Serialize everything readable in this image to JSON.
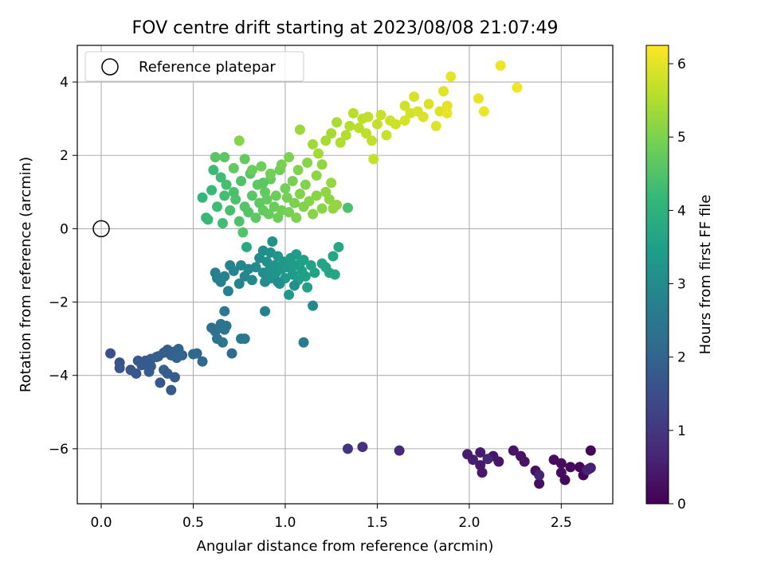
{
  "chart_data": {
    "type": "scatter",
    "title": "FOV centre drift starting at 2023/08/08 21:07:49",
    "xlabel": "Angular distance from reference (arcmin)",
    "ylabel": "Rotation from reference (arcmin)",
    "xlim": [
      -0.13,
      2.78
    ],
    "ylim": [
      -7.5,
      5.0
    ],
    "xticks": [
      0.0,
      0.5,
      1.0,
      1.5,
      2.0,
      2.5
    ],
    "xtick_labels": [
      "0.0",
      "0.5",
      "1.0",
      "1.5",
      "2.0",
      "2.5"
    ],
    "yticks": [
      -6,
      -4,
      -2,
      0,
      2,
      4
    ],
    "ytick_labels": [
      "−6",
      "−4",
      "−2",
      "0",
      "2",
      "4"
    ],
    "grid": true,
    "legend": {
      "placement": "top-left",
      "entries": [
        "Reference platepar"
      ]
    },
    "reference_point": {
      "name": "Reference platepar",
      "x": 0.0,
      "y": 0.0
    },
    "colorbar": {
      "label": "Hours from first FF file",
      "min": 0,
      "max": 6.25,
      "ticks": [
        0,
        1,
        2,
        3,
        4,
        5,
        6
      ],
      "tick_labels": [
        "0",
        "1",
        "2",
        "3",
        "4",
        "5",
        "6"
      ],
      "colormap": "viridis",
      "colormap_stops": [
        "#440154",
        "#482878",
        "#3e4989",
        "#31688e",
        "#26828e",
        "#1f9e89",
        "#35b779",
        "#6ece58",
        "#b5de2b",
        "#fde725"
      ]
    },
    "points_xyc": [
      [
        2.66,
        -6.05,
        0.05
      ],
      [
        2.62,
        -6.72,
        0.08
      ],
      [
        2.6,
        -6.5,
        0.1
      ],
      [
        2.55,
        -6.5,
        0.12
      ],
      [
        2.52,
        -6.85,
        0.15
      ],
      [
        2.5,
        -6.65,
        0.18
      ],
      [
        2.5,
        -6.4,
        0.2
      ],
      [
        2.46,
        -6.3,
        0.22
      ],
      [
        2.38,
        -6.95,
        0.25
      ],
      [
        2.36,
        -6.6,
        0.28
      ],
      [
        2.3,
        -6.35,
        0.3
      ],
      [
        2.28,
        -6.2,
        0.32
      ],
      [
        2.24,
        -6.05,
        0.35
      ],
      [
        2.16,
        -6.35,
        0.38
      ],
      [
        2.13,
        -6.2,
        0.4
      ],
      [
        2.07,
        -6.65,
        0.42
      ],
      [
        2.06,
        -6.45,
        0.45
      ],
      [
        2.06,
        -6.1,
        0.48
      ],
      [
        2.02,
        -6.3,
        0.5
      ],
      [
        1.99,
        -6.15,
        0.52
      ],
      [
        2.65,
        -6.55,
        0.55
      ],
      [
        2.66,
        -6.52,
        0.56
      ],
      [
        2.64,
        -6.58,
        0.58
      ],
      [
        2.38,
        -6.72,
        0.6
      ],
      [
        2.1,
        -6.28,
        0.62
      ],
      [
        1.62,
        -6.05,
        0.75
      ],
      [
        1.42,
        -5.95,
        0.85
      ],
      [
        1.34,
        -6.0,
        0.95
      ],
      [
        0.05,
        -3.4,
        1.55
      ],
      [
        0.1,
        -3.65,
        1.6
      ],
      [
        0.1,
        -3.8,
        1.65
      ],
      [
        0.16,
        -3.85,
        1.68
      ],
      [
        0.19,
        -3.95,
        1.72
      ],
      [
        0.24,
        -3.6,
        1.75
      ],
      [
        0.22,
        -3.72,
        1.78
      ],
      [
        0.26,
        -3.9,
        1.8
      ],
      [
        0.27,
        -3.55,
        1.82
      ],
      [
        0.31,
        -3.48,
        1.85
      ],
      [
        0.32,
        -4.2,
        1.72
      ],
      [
        0.34,
        -3.85,
        1.88
      ],
      [
        0.36,
        -3.3,
        1.9
      ],
      [
        0.38,
        -3.45,
        1.92
      ],
      [
        0.38,
        -4.4,
        1.75
      ],
      [
        0.4,
        -3.35,
        1.95
      ],
      [
        0.42,
        -3.28,
        1.97
      ],
      [
        0.4,
        -4.05,
        1.8
      ],
      [
        0.36,
        -3.95,
        1.82
      ],
      [
        0.41,
        -3.52,
        1.99
      ],
      [
        0.44,
        -3.45,
        2.0
      ],
      [
        0.5,
        -3.42,
        2.05
      ],
      [
        0.52,
        -3.4,
        2.08
      ],
      [
        0.55,
        -3.62,
        2.1
      ],
      [
        0.27,
        -3.75,
        1.77
      ],
      [
        0.3,
        -3.5,
        1.84
      ],
      [
        0.34,
        -3.38,
        1.87
      ],
      [
        0.2,
        -3.6,
        1.74
      ],
      [
        0.6,
        -2.7,
        2.3
      ],
      [
        0.62,
        -2.8,
        2.32
      ],
      [
        0.63,
        -3.0,
        2.35
      ],
      [
        0.65,
        -2.6,
        2.38
      ],
      [
        0.67,
        -2.75,
        2.4
      ],
      [
        0.66,
        -3.1,
        2.42
      ],
      [
        0.68,
        -2.65,
        2.44
      ],
      [
        0.71,
        -3.4,
        2.2
      ],
      [
        0.76,
        -3.0,
        2.5
      ],
      [
        0.78,
        -3.0,
        2.52
      ],
      [
        0.67,
        -2.25,
        2.55
      ],
      [
        0.62,
        -1.2,
        2.7
      ],
      [
        0.63,
        -1.35,
        2.72
      ],
      [
        0.65,
        -1.45,
        2.75
      ],
      [
        0.67,
        -1.3,
        2.78
      ],
      [
        0.69,
        -1.7,
        2.75
      ],
      [
        0.7,
        -1.0,
        2.8
      ],
      [
        0.72,
        -1.15,
        2.82
      ],
      [
        0.75,
        -1.5,
        2.85
      ],
      [
        0.76,
        -1.0,
        2.87
      ],
      [
        0.78,
        -1.3,
        2.9
      ],
      [
        0.8,
        -1.1,
        2.92
      ],
      [
        0.82,
        -1.4,
        2.95
      ],
      [
        0.84,
        -1.05,
        2.97
      ],
      [
        0.86,
        -0.8,
        3.0
      ],
      [
        0.88,
        -1.2,
        3.02
      ],
      [
        0.88,
        -0.6,
        3.05
      ],
      [
        0.89,
        -1.45,
        3.07
      ],
      [
        0.9,
        -0.9,
        3.1
      ],
      [
        0.91,
        -1.15,
        3.12
      ],
      [
        0.92,
        -0.65,
        3.14
      ],
      [
        0.92,
        -1.35,
        3.16
      ],
      [
        0.93,
        -0.35,
        3.18
      ],
      [
        0.94,
        -1.0,
        3.2
      ],
      [
        0.95,
        -1.2,
        3.22
      ],
      [
        0.96,
        -0.75,
        3.24
      ],
      [
        0.97,
        -1.5,
        3.26
      ],
      [
        0.98,
        -1.1,
        3.28
      ],
      [
        0.99,
        -0.9,
        3.3
      ],
      [
        1.0,
        -1.35,
        3.32
      ],
      [
        1.01,
        -1.05,
        3.34
      ],
      [
        1.02,
        -1.8,
        3.36
      ],
      [
        1.03,
        -0.8,
        3.38
      ],
      [
        1.04,
        -1.25,
        3.4
      ],
      [
        1.05,
        -1.0,
        3.42
      ],
      [
        1.06,
        -0.7,
        3.44
      ],
      [
        1.07,
        -1.4,
        3.46
      ],
      [
        1.08,
        -0.95,
        3.48
      ],
      [
        1.09,
        -1.15,
        3.5
      ],
      [
        1.1,
        -0.85,
        3.52
      ],
      [
        1.11,
        -1.3,
        3.54
      ],
      [
        1.12,
        -1.6,
        3.56
      ],
      [
        1.14,
        -1.0,
        3.58
      ],
      [
        1.16,
        -1.2,
        3.6
      ],
      [
        1.2,
        -0.95,
        3.62
      ],
      [
        1.22,
        -1.05,
        3.64
      ],
      [
        1.24,
        -1.2,
        3.66
      ],
      [
        1.26,
        -0.75,
        3.68
      ],
      [
        1.27,
        -1.25,
        3.7
      ],
      [
        1.29,
        -0.5,
        3.72
      ],
      [
        0.79,
        -0.5,
        3.75
      ],
      [
        1.15,
        -2.1,
        2.95
      ],
      [
        1.1,
        -3.1,
        2.6
      ],
      [
        0.89,
        -2.25,
        2.75
      ],
      [
        0.96,
        -1.45,
        3.08
      ],
      [
        1.05,
        -1.55,
        3.15
      ],
      [
        0.55,
        0.85,
        4.1
      ],
      [
        0.57,
        0.3,
        4.15
      ],
      [
        0.58,
        0.25,
        4.2
      ],
      [
        0.6,
        1.05,
        4.22
      ],
      [
        0.61,
        1.6,
        4.25
      ],
      [
        0.63,
        0.6,
        4.28
      ],
      [
        0.65,
        1.4,
        4.3
      ],
      [
        0.66,
        0.15,
        4.32
      ],
      [
        0.67,
        0.9,
        4.35
      ],
      [
        0.68,
        1.2,
        4.38
      ],
      [
        0.7,
        0.5,
        4.4
      ],
      [
        0.72,
        1.0,
        4.42
      ],
      [
        0.73,
        0.8,
        4.45
      ],
      [
        0.75,
        0.2,
        4.48
      ],
      [
        0.76,
        1.3,
        4.5
      ],
      [
        0.77,
        -0.1,
        4.52
      ],
      [
        0.78,
        0.6,
        4.55
      ],
      [
        0.8,
        0.45,
        4.57
      ],
      [
        0.81,
        1.5,
        4.6
      ],
      [
        0.82,
        0.9,
        4.62
      ],
      [
        0.84,
        0.3,
        4.64
      ],
      [
        0.85,
        1.2,
        4.66
      ],
      [
        0.86,
        0.7,
        4.68
      ],
      [
        0.88,
        0.5,
        4.7
      ],
      [
        0.89,
        1.0,
        4.72
      ],
      [
        0.9,
        0.8,
        4.74
      ],
      [
        0.91,
        0.4,
        4.76
      ],
      [
        0.92,
        1.35,
        4.78
      ],
      [
        0.94,
        0.6,
        4.8
      ],
      [
        0.95,
        0.9,
        4.82
      ],
      [
        0.96,
        0.3,
        4.84
      ],
      [
        0.97,
        1.6,
        4.86
      ],
      [
        0.98,
        0.5,
        4.88
      ],
      [
        1.0,
        1.1,
        4.9
      ],
      [
        1.01,
        0.85,
        4.92
      ],
      [
        1.02,
        0.45,
        4.94
      ],
      [
        1.04,
        1.3,
        4.96
      ],
      [
        1.05,
        0.7,
        4.98
      ],
      [
        1.06,
        0.3,
        5.0
      ],
      [
        1.08,
        0.95,
        5.02
      ],
      [
        1.1,
        0.6,
        5.04
      ],
      [
        1.11,
        1.2,
        5.06
      ],
      [
        1.13,
        0.75,
        5.08
      ],
      [
        1.15,
        0.4,
        5.1
      ],
      [
        1.17,
        0.9,
        5.12
      ],
      [
        1.2,
        0.55,
        5.14
      ],
      [
        1.22,
        1.0,
        5.16
      ],
      [
        1.24,
        0.8,
        5.18
      ],
      [
        1.26,
        0.55,
        5.2
      ],
      [
        1.28,
        0.65,
        5.22
      ],
      [
        1.34,
        0.57,
        4.45
      ],
      [
        0.62,
        1.95,
        4.6
      ],
      [
        0.67,
        1.95,
        4.65
      ],
      [
        0.72,
        1.65,
        4.7
      ],
      [
        0.78,
        1.9,
        4.75
      ],
      [
        0.82,
        1.6,
        4.8
      ],
      [
        0.87,
        1.7,
        4.85
      ],
      [
        0.92,
        1.5,
        4.9
      ],
      [
        0.98,
        1.75,
        4.95
      ],
      [
        1.02,
        1.95,
        5.0
      ],
      [
        1.07,
        1.6,
        5.05
      ],
      [
        1.12,
        1.8,
        5.1
      ],
      [
        1.17,
        1.45,
        5.15
      ],
      [
        1.2,
        1.75,
        5.2
      ],
      [
        1.25,
        1.25,
        5.25
      ],
      [
        1.08,
        2.7,
        5.3
      ],
      [
        1.15,
        2.3,
        5.35
      ],
      [
        1.18,
        2.05,
        5.38
      ],
      [
        1.22,
        2.4,
        5.42
      ],
      [
        0.75,
        2.4,
        5.1
      ],
      [
        0.88,
        1.25,
        4.6
      ],
      [
        1.25,
        2.6,
        5.4
      ],
      [
        1.28,
        2.9,
        5.45
      ],
      [
        1.3,
        2.35,
        5.5
      ],
      [
        1.33,
        2.55,
        5.52
      ],
      [
        1.35,
        2.8,
        5.55
      ],
      [
        1.37,
        3.15,
        5.58
      ],
      [
        1.4,
        2.75,
        5.6
      ],
      [
        1.42,
        3.0,
        5.62
      ],
      [
        1.44,
        2.6,
        5.64
      ],
      [
        1.45,
        3.05,
        5.66
      ],
      [
        1.47,
        2.4,
        5.68
      ],
      [
        1.48,
        1.9,
        5.7
      ],
      [
        1.5,
        2.85,
        5.72
      ],
      [
        1.52,
        3.1,
        5.74
      ],
      [
        1.55,
        2.55,
        5.76
      ],
      [
        1.57,
        2.95,
        5.78
      ],
      [
        1.6,
        2.85,
        5.8
      ],
      [
        1.65,
        3.35,
        5.82
      ],
      [
        1.68,
        3.15,
        5.84
      ],
      [
        1.7,
        3.6,
        5.86
      ],
      [
        1.72,
        3.2,
        5.88
      ],
      [
        1.75,
        3.05,
        5.9
      ],
      [
        1.78,
        3.4,
        5.92
      ],
      [
        1.82,
        2.8,
        5.94
      ],
      [
        1.84,
        3.2,
        5.96
      ],
      [
        1.86,
        3.75,
        5.98
      ],
      [
        1.88,
        3.35,
        6.0
      ],
      [
        1.9,
        4.15,
        6.02
      ],
      [
        2.05,
        3.55,
        6.04
      ],
      [
        2.08,
        3.2,
        6.06
      ],
      [
        2.17,
        4.45,
        6.1
      ],
      [
        2.26,
        3.85,
        6.12
      ],
      [
        1.88,
        3.15,
        6.05
      ],
      [
        1.65,
        2.95,
        5.85
      ]
    ]
  }
}
